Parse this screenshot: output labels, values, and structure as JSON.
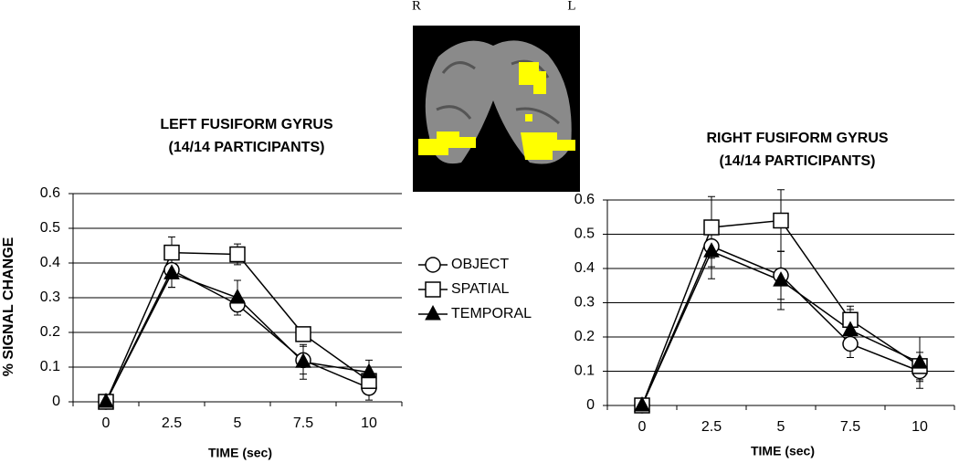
{
  "brain_image": {
    "left_side_label": "R",
    "right_side_label": "L"
  },
  "chart_data": [
    {
      "type": "line",
      "title": "LEFT FUSIFORM GYRUS",
      "subtitle": "(14/14 PARTICIPANTS)",
      "x_label": "TIME (sec)",
      "y_label": "% SIGNAL CHANGE",
      "categories": [
        "0",
        "2.5",
        "5",
        "7.5",
        "10"
      ],
      "ylim": [
        0,
        0.6
      ],
      "yticks": [
        0,
        0.1,
        0.2,
        0.3,
        0.4,
        0.5,
        0.6
      ],
      "grid": true,
      "legend": "right",
      "series": [
        {
          "name": "OBJECT",
          "color": "#000000",
          "marker": "circle",
          "values": [
            0,
            0.38,
            0.28,
            0.12,
            0.04
          ],
          "errors": [
            0,
            0.05,
            0.02,
            0.04,
            0.035
          ]
        },
        {
          "name": "SPATIAL",
          "color": "#000000",
          "marker": "square",
          "values": [
            0,
            0.43,
            0.425,
            0.195,
            0.06
          ],
          "errors": [
            0,
            0.045,
            0.03,
            0.015,
            0.03
          ]
        },
        {
          "name": "TEMPORAL",
          "color": "#000000",
          "marker": "triangle",
          "values": [
            0,
            0.37,
            0.3,
            0.115,
            0.085
          ],
          "errors": [
            0,
            0.04,
            0.05,
            0.05,
            0.035
          ]
        }
      ]
    },
    {
      "type": "line",
      "title": "RIGHT FUSIFORM GYRUS",
      "subtitle": "(14/14 PARTICIPANTS)",
      "x_label": "TIME (sec)",
      "categories": [
        "0",
        "2.5",
        "5",
        "7.5",
        "10"
      ],
      "ylim": [
        0,
        0.6
      ],
      "yticks": [
        0,
        0.1,
        0.2,
        0.3,
        0.4,
        0.5,
        0.6
      ],
      "grid": true,
      "series": [
        {
          "color": "#000000",
          "marker": "circle",
          "values": [
            0,
            0.465,
            0.38,
            0.18,
            0.1
          ],
          "errors": [
            0,
            0.06,
            0.07,
            0.04,
            0.03
          ]
        },
        {
          "color": "#000000",
          "marker": "square",
          "values": [
            0,
            0.52,
            0.54,
            0.25,
            0.115
          ],
          "errors": [
            0,
            0.09,
            0.09,
            0.04,
            0.04
          ]
        },
        {
          "color": "#000000",
          "marker": "triangle",
          "values": [
            0,
            0.45,
            0.365,
            0.22,
            0.125
          ],
          "errors": [
            0,
            0.08,
            0.085,
            0.06,
            0.075
          ]
        }
      ]
    }
  ]
}
